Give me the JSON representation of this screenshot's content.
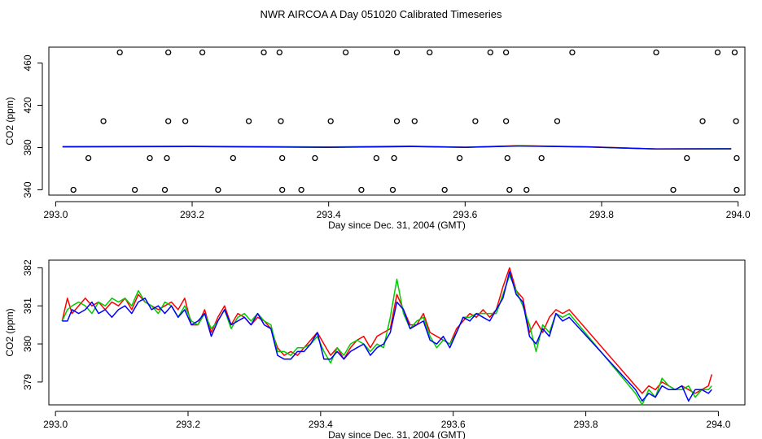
{
  "title": "NWR AIRCOA A  Day 051020  Calibrated Timeseries",
  "chart_data": [
    {
      "type": "line",
      "panel": "top",
      "xlabel": "Day since Dec. 31, 2004 (GMT)",
      "ylabel": "CO2 (ppm)",
      "xlim": [
        292.99,
        294.01
      ],
      "ylim": [
        335,
        475
      ],
      "xticks": [
        293.0,
        293.2,
        293.4,
        293.6,
        293.8,
        294.0
      ],
      "xtick_labels": [
        "293.0",
        "293.2",
        "293.4",
        "293.6",
        "293.8",
        "294.0"
      ],
      "yticks": [
        340,
        380,
        420,
        460
      ],
      "ytick_labels": [
        "340",
        "380",
        "420",
        "460"
      ],
      "grid": false,
      "series": [
        {
          "name": "red",
          "color": "#ff0000",
          "x": [
            293.01,
            293.2,
            293.4,
            293.52,
            293.6,
            293.68,
            293.78,
            293.88,
            293.99
          ],
          "y": [
            381.0,
            381.2,
            380.6,
            381.3,
            380.4,
            381.8,
            380.8,
            378.8,
            379.0
          ]
        },
        {
          "name": "green",
          "color": "#00cc00",
          "x": [
            293.01,
            293.2,
            293.4,
            293.52,
            293.6,
            293.68,
            293.78,
            293.88,
            293.99
          ],
          "y": [
            380.8,
            381.0,
            380.4,
            381.1,
            380.3,
            381.6,
            380.6,
            378.6,
            378.9
          ]
        },
        {
          "name": "blue",
          "color": "#0000ff",
          "x": [
            293.01,
            293.2,
            293.4,
            293.52,
            293.6,
            293.68,
            293.78,
            293.88,
            293.99
          ],
          "y": [
            380.7,
            380.9,
            380.2,
            381.0,
            380.2,
            381.5,
            380.5,
            378.7,
            378.8
          ]
        }
      ],
      "markers": {
        "style": "open-circle",
        "y470": [
          293.094,
          293.165,
          293.215,
          293.305,
          293.328,
          293.425,
          293.5,
          293.548,
          293.637,
          293.66,
          293.757,
          293.88,
          293.97,
          293.995
        ],
        "y405": [
          293.07,
          293.165,
          293.19,
          293.283,
          293.33,
          293.403,
          293.5,
          293.526,
          293.615,
          293.66,
          293.735,
          293.948,
          293.997
        ],
        "y370": [
          293.048,
          293.138,
          293.163,
          293.26,
          293.332,
          293.38,
          293.47,
          293.496,
          293.592,
          293.662,
          293.712,
          293.925,
          293.998
        ],
        "y340": [
          293.026,
          293.116,
          293.16,
          293.238,
          293.332,
          293.36,
          293.448,
          293.494,
          293.57,
          293.665,
          293.69,
          293.905,
          293.998
        ]
      }
    },
    {
      "type": "line",
      "panel": "bottom",
      "xlabel": "Day since Dec. 31, 2004 (GMT)",
      "ylabel": "CO2 (ppm)",
      "xlim": [
        292.99,
        294.04
      ],
      "ylim": [
        378.4,
        382.2
      ],
      "xticks": [
        293.0,
        293.2,
        293.4,
        293.6,
        293.8,
        294.0
      ],
      "xtick_labels": [
        "293.0",
        "293.2",
        "293.4",
        "293.6",
        "293.8",
        "294.0"
      ],
      "yticks": [
        379,
        380,
        381,
        382
      ],
      "ytick_labels": [
        "379",
        "380",
        "381",
        "382"
      ],
      "grid": false,
      "series": [
        {
          "name": "red",
          "color": "#ff0000",
          "x": [
            293.01,
            293.018,
            293.025,
            293.035,
            293.045,
            293.055,
            293.065,
            293.075,
            293.085,
            293.095,
            293.105,
            293.115,
            293.125,
            293.135,
            293.145,
            293.155,
            293.165,
            293.175,
            293.185,
            293.195,
            293.205,
            293.215,
            293.225,
            293.235,
            293.245,
            293.255,
            293.265,
            293.275,
            293.285,
            293.295,
            293.305,
            293.315,
            293.325,
            293.335,
            293.345,
            293.355,
            293.365,
            293.375,
            293.385,
            293.395,
            293.405,
            293.415,
            293.425,
            293.435,
            293.445,
            293.455,
            293.465,
            293.475,
            293.485,
            293.495,
            293.505,
            293.515,
            293.525,
            293.535,
            293.545,
            293.555,
            293.565,
            293.575,
            293.585,
            293.595,
            293.605,
            293.615,
            293.625,
            293.635,
            293.645,
            293.655,
            293.665,
            293.675,
            293.685,
            293.695,
            293.705,
            293.715,
            293.725,
            293.735,
            293.745,
            293.755,
            293.765,
            293.775,
            293.875,
            293.885,
            293.895,
            293.905,
            293.915,
            293.925,
            293.935,
            293.945,
            293.955,
            293.965,
            293.975,
            293.985,
            293.99
          ],
          "y": [
            380.6,
            381.2,
            380.8,
            381.0,
            381.2,
            381.0,
            381.1,
            380.9,
            381.1,
            381.0,
            381.2,
            380.9,
            381.3,
            381.1,
            381.0,
            380.9,
            381.0,
            381.1,
            380.9,
            381.2,
            380.5,
            380.5,
            380.9,
            380.3,
            380.7,
            381.0,
            380.5,
            380.8,
            380.7,
            380.5,
            380.7,
            380.6,
            380.4,
            379.9,
            379.7,
            379.8,
            379.7,
            379.9,
            380.1,
            380.3,
            380.0,
            379.7,
            379.9,
            379.6,
            379.9,
            380.1,
            380.2,
            379.9,
            380.2,
            380.3,
            380.4,
            381.3,
            380.9,
            380.5,
            380.5,
            380.8,
            380.3,
            380.2,
            380.1,
            380.0,
            380.4,
            380.6,
            380.8,
            380.7,
            380.9,
            380.7,
            380.9,
            381.5,
            382.0,
            381.4,
            381.2,
            380.3,
            380.6,
            380.3,
            380.7,
            380.9,
            380.8,
            380.9,
            378.9,
            378.7,
            378.9,
            378.8,
            379.0,
            378.9,
            378.8,
            378.9,
            378.8,
            378.7,
            378.8,
            378.9,
            379.2
          ]
        },
        {
          "name": "green",
          "color": "#00cc00",
          "x": [
            293.01,
            293.018,
            293.025,
            293.035,
            293.045,
            293.055,
            293.065,
            293.075,
            293.085,
            293.095,
            293.105,
            293.115,
            293.125,
            293.135,
            293.145,
            293.155,
            293.165,
            293.175,
            293.185,
            293.195,
            293.205,
            293.215,
            293.225,
            293.235,
            293.245,
            293.255,
            293.265,
            293.275,
            293.285,
            293.295,
            293.305,
            293.315,
            293.325,
            293.335,
            293.345,
            293.355,
            293.365,
            293.375,
            293.385,
            293.395,
            293.405,
            293.415,
            293.425,
            293.435,
            293.445,
            293.455,
            293.465,
            293.475,
            293.485,
            293.495,
            293.505,
            293.515,
            293.525,
            293.535,
            293.545,
            293.555,
            293.565,
            293.575,
            293.585,
            293.595,
            293.605,
            293.615,
            293.625,
            293.635,
            293.645,
            293.655,
            293.665,
            293.675,
            293.685,
            293.695,
            293.705,
            293.715,
            293.725,
            293.735,
            293.745,
            293.755,
            293.765,
            293.775,
            293.875,
            293.885,
            293.895,
            293.905,
            293.915,
            293.925,
            293.935,
            293.945,
            293.955,
            293.965,
            293.975,
            293.985,
            293.99
          ],
          "y": [
            380.6,
            380.9,
            381.0,
            381.1,
            381.0,
            380.8,
            381.1,
            381.0,
            381.2,
            381.1,
            381.2,
            381.0,
            381.4,
            381.1,
            381.0,
            380.8,
            381.1,
            381.0,
            380.7,
            381.0,
            380.6,
            380.5,
            380.8,
            380.4,
            380.6,
            380.9,
            380.4,
            380.7,
            380.8,
            380.6,
            380.8,
            380.6,
            380.5,
            379.8,
            379.8,
            379.7,
            379.9,
            379.9,
            380.0,
            380.2,
            379.8,
            379.5,
            379.9,
            379.7,
            380.0,
            380.1,
            380.0,
            379.8,
            380.0,
            379.9,
            380.7,
            381.7,
            380.8,
            380.4,
            380.6,
            380.7,
            380.2,
            379.9,
            380.1,
            380.0,
            380.3,
            380.7,
            380.7,
            380.8,
            380.8,
            380.8,
            380.8,
            381.3,
            381.8,
            381.4,
            381.0,
            380.5,
            379.8,
            380.5,
            380.3,
            380.8,
            380.7,
            380.8,
            378.7,
            378.4,
            378.8,
            378.6,
            379.1,
            378.9,
            378.8,
            378.8,
            378.9,
            378.6,
            378.8,
            378.8,
            378.9
          ]
        },
        {
          "name": "blue",
          "color": "#0000ff",
          "x": [
            293.01,
            293.018,
            293.025,
            293.035,
            293.045,
            293.055,
            293.065,
            293.075,
            293.085,
            293.095,
            293.105,
            293.115,
            293.125,
            293.135,
            293.145,
            293.155,
            293.165,
            293.175,
            293.185,
            293.195,
            293.205,
            293.215,
            293.225,
            293.235,
            293.245,
            293.255,
            293.265,
            293.275,
            293.285,
            293.295,
            293.305,
            293.315,
            293.325,
            293.335,
            293.345,
            293.355,
            293.365,
            293.375,
            293.385,
            293.395,
            293.405,
            293.415,
            293.425,
            293.435,
            293.445,
            293.455,
            293.465,
            293.475,
            293.485,
            293.495,
            293.505,
            293.515,
            293.525,
            293.535,
            293.545,
            293.555,
            293.565,
            293.575,
            293.585,
            293.595,
            293.605,
            293.615,
            293.625,
            293.635,
            293.645,
            293.655,
            293.665,
            293.675,
            293.685,
            293.695,
            293.705,
            293.715,
            293.725,
            293.735,
            293.745,
            293.755,
            293.765,
            293.775,
            293.875,
            293.885,
            293.895,
            293.905,
            293.915,
            293.925,
            293.935,
            293.945,
            293.955,
            293.965,
            293.975,
            293.985,
            293.99
          ],
          "y": [
            380.6,
            380.6,
            380.9,
            380.8,
            380.9,
            381.1,
            380.8,
            380.9,
            380.7,
            380.9,
            381.0,
            380.8,
            381.1,
            381.2,
            380.9,
            381.0,
            380.8,
            381.0,
            380.7,
            380.9,
            380.5,
            380.6,
            380.8,
            380.2,
            380.6,
            380.9,
            380.5,
            380.6,
            380.7,
            380.5,
            380.8,
            380.5,
            380.4,
            379.7,
            379.6,
            379.6,
            379.8,
            379.8,
            380.0,
            380.3,
            379.6,
            379.6,
            379.8,
            379.6,
            379.8,
            379.9,
            380.0,
            379.7,
            379.9,
            380.0,
            380.3,
            381.1,
            380.9,
            380.4,
            380.5,
            380.6,
            380.1,
            380.0,
            380.2,
            379.9,
            380.3,
            380.7,
            380.6,
            380.8,
            380.7,
            380.6,
            380.9,
            381.2,
            381.9,
            381.3,
            381.1,
            380.2,
            380.0,
            380.4,
            380.2,
            380.8,
            380.6,
            380.7,
            378.8,
            378.5,
            378.7,
            378.6,
            378.9,
            378.8,
            378.8,
            378.9,
            378.5,
            378.8,
            378.8,
            378.7,
            378.8
          ]
        }
      ]
    }
  ]
}
